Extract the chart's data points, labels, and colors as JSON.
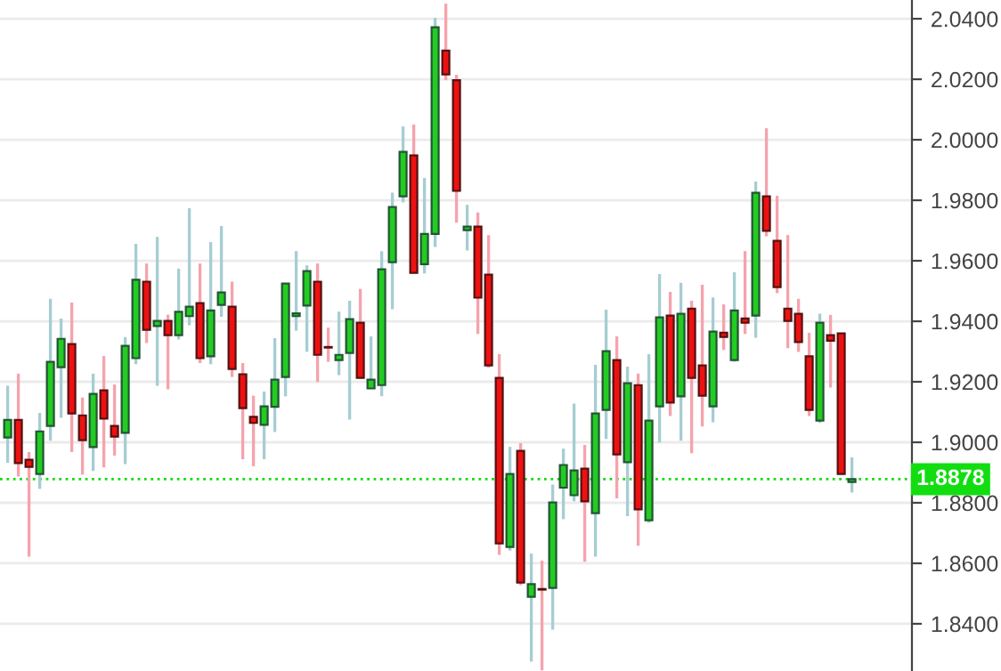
{
  "chart_data": {
    "type": "candlestick",
    "categories": [
      null,
      null,
      null,
      null,
      null,
      null,
      null,
      null,
      null,
      null,
      null,
      null,
      null,
      null,
      null,
      null,
      null,
      null,
      null,
      null,
      null,
      null,
      null,
      null,
      null,
      null,
      null,
      null,
      null,
      null,
      null,
      null,
      null,
      null,
      null,
      null,
      null,
      null,
      null,
      null,
      null,
      null,
      null,
      null,
      null,
      null,
      null,
      null,
      null,
      null,
      null,
      null,
      null,
      null,
      null,
      null,
      null,
      null,
      null,
      null,
      null,
      null,
      null,
      null,
      null,
      null,
      null,
      null,
      null,
      null,
      null,
      null,
      null,
      null,
      null,
      null,
      null,
      null,
      null,
      null
    ],
    "ohlc": [
      [
        1.9016,
        1.9187,
        1.8932,
        1.9074
      ],
      [
        1.9074,
        1.9227,
        1.8887,
        1.8931
      ],
      [
        1.8942,
        1.8968,
        1.8622,
        1.8919
      ],
      [
        1.8895,
        1.9097,
        1.8846,
        1.9036
      ],
      [
        1.9054,
        1.9474,
        1.9005,
        1.9266
      ],
      [
        1.9248,
        1.9409,
        1.9081,
        1.9342
      ],
      [
        1.9325,
        1.9462,
        1.8968,
        1.9095
      ],
      [
        1.9089,
        1.9148,
        1.8893,
        1.9007
      ],
      [
        1.8984,
        1.9227,
        1.8905,
        1.916
      ],
      [
        1.9172,
        1.9285,
        1.8917,
        1.9078
      ],
      [
        1.9054,
        1.9191,
        1.8956,
        1.9019
      ],
      [
        1.9031,
        1.9348,
        1.8928,
        1.9319
      ],
      [
        1.9278,
        1.9656,
        1.9258,
        1.9537
      ],
      [
        1.9531,
        1.9591,
        1.9328,
        1.9372
      ],
      [
        1.9384,
        1.9679,
        1.9187,
        1.9401
      ],
      [
        1.9401,
        1.9422,
        1.9175,
        1.9354
      ],
      [
        1.9354,
        1.9574,
        1.934,
        1.9431
      ],
      [
        1.9417,
        1.9774,
        1.9387,
        1.9448
      ],
      [
        1.946,
        1.9591,
        1.9262,
        1.9278
      ],
      [
        1.9284,
        1.9662,
        1.9258,
        1.9436
      ],
      [
        1.9454,
        1.9715,
        1.9415,
        1.9495
      ],
      [
        1.9448,
        1.9531,
        1.9216,
        1.9242
      ],
      [
        1.9225,
        1.9262,
        1.8944,
        1.9113
      ],
      [
        1.9084,
        1.9154,
        1.8921,
        1.9064
      ],
      [
        1.9058,
        1.9168,
        1.8944,
        1.9119
      ],
      [
        1.9117,
        1.9344,
        1.9034,
        1.9207
      ],
      [
        1.9216,
        1.9525,
        1.9152,
        1.9525
      ],
      [
        1.9417,
        1.9632,
        1.9369,
        1.9426
      ],
      [
        1.9452,
        1.9585,
        1.9299,
        1.9566
      ],
      [
        1.9531,
        1.9591,
        1.9199,
        1.9289
      ],
      [
        1.9315,
        1.9379,
        1.9266,
        1.9313
      ],
      [
        1.9272,
        1.9432,
        1.9222,
        1.9289
      ],
      [
        1.9295,
        1.9468,
        1.9075,
        1.9407
      ],
      [
        1.9395,
        1.9507,
        1.9213,
        1.9213
      ],
      [
        1.9178,
        1.935,
        1.9178,
        1.9207
      ],
      [
        1.9189,
        1.9632,
        1.9152,
        1.9572
      ],
      [
        1.9595,
        1.9825,
        1.944,
        1.9778
      ],
      [
        1.9813,
        2.0044,
        1.9793,
        1.996
      ],
      [
        1.9948,
        2.005,
        1.956,
        1.956
      ],
      [
        1.9589,
        1.9874,
        1.9558,
        1.9689
      ],
      [
        1.9689,
        2.0403,
        1.9646,
        2.0372
      ],
      [
        2.0295,
        2.045,
        2.0197,
        2.0216
      ],
      [
        2.0197,
        2.0215,
        1.9726,
        1.9831
      ],
      [
        1.9701,
        1.9785,
        1.9634,
        1.9713
      ],
      [
        1.9713,
        1.976,
        1.9358,
        1.9478
      ],
      [
        1.9554,
        1.9685,
        1.9246,
        1.9254
      ],
      [
        1.9213,
        1.9291,
        1.8628,
        1.8666
      ],
      [
        1.8654,
        1.8985,
        1.8642,
        1.8895
      ],
      [
        1.8972,
        1.8997,
        1.8528,
        1.8536
      ],
      [
        1.8489,
        1.8632,
        1.8275,
        1.8531
      ],
      [
        1.8515,
        1.8609,
        1.8246,
        1.8513
      ],
      [
        1.8519,
        1.886,
        1.8381,
        1.8801
      ],
      [
        1.885,
        1.8979,
        1.8746,
        1.8925
      ],
      [
        1.8825,
        1.9128,
        1.8805,
        1.8907
      ],
      [
        1.8913,
        1.8991,
        1.8605,
        1.8805
      ],
      [
        1.8766,
        1.9256,
        1.8622,
        1.9095
      ],
      [
        1.9107,
        1.9438,
        1.9011,
        1.9301
      ],
      [
        1.9272,
        1.935,
        1.8815,
        1.896
      ],
      [
        1.8934,
        1.925,
        1.8756,
        1.9195
      ],
      [
        1.9189,
        1.9227,
        1.8658,
        1.8778
      ],
      [
        1.8742,
        1.9291,
        1.8734,
        1.9072
      ],
      [
        1.9119,
        1.9556,
        1.8999,
        1.9413
      ],
      [
        1.9419,
        1.9497,
        1.9087,
        1.9131
      ],
      [
        1.9152,
        1.9527,
        1.9005,
        1.9425
      ],
      [
        1.9442,
        1.9468,
        1.8964,
        1.9213
      ],
      [
        1.9254,
        1.9521,
        1.9052,
        1.9154
      ],
      [
        1.9119,
        1.9479,
        1.9066,
        1.9366
      ],
      [
        1.9362,
        1.9456,
        1.9305,
        1.9348
      ],
      [
        1.9272,
        1.9562,
        1.9266,
        1.9436
      ],
      [
        1.9409,
        1.9632,
        1.9358,
        1.9395
      ],
      [
        1.9419,
        1.9862,
        1.9346,
        1.9825
      ],
      [
        1.9813,
        2.0038,
        1.9681,
        1.9699
      ],
      [
        1.9666,
        1.9815,
        1.9493,
        1.9513
      ],
      [
        1.9442,
        1.9685,
        1.9311,
        1.9401
      ],
      [
        1.9425,
        1.9474,
        1.9299,
        1.9331
      ],
      [
        1.9284,
        1.9362,
        1.9087,
        1.9107
      ],
      [
        1.9072,
        1.9425,
        1.9064,
        1.9395
      ],
      [
        1.9354,
        1.9421,
        1.9181,
        1.9336
      ],
      [
        1.936,
        1.936,
        1.8895,
        1.8895
      ],
      [
        1.8869,
        1.895,
        1.8834,
        1.8878
      ]
    ],
    "ylim": [
      1.8244,
      2.0462
    ],
    "yticks": [
      {
        "value": 1.84,
        "label": "1.8400"
      },
      {
        "value": 1.86,
        "label": "1.8600"
      },
      {
        "value": 1.88,
        "label": "1.8800"
      },
      {
        "value": 1.9,
        "label": "1.9000"
      },
      {
        "value": 1.92,
        "label": "1.9200"
      },
      {
        "value": 1.94,
        "label": "1.9400"
      },
      {
        "value": 1.96,
        "label": "1.9600"
      },
      {
        "value": 1.98,
        "label": "1.9800"
      },
      {
        "value": 2.0,
        "label": "2.0000"
      },
      {
        "value": 2.02,
        "label": "2.0200"
      },
      {
        "value": 2.04,
        "label": "2.0400"
      }
    ],
    "ref_lines": [
      {
        "axis": "y",
        "value": 1.8878,
        "label": "1.8878",
        "color": "#11dd11",
        "line_style": "dotted"
      }
    ],
    "grid": "y",
    "tick_labels": "y"
  }
}
